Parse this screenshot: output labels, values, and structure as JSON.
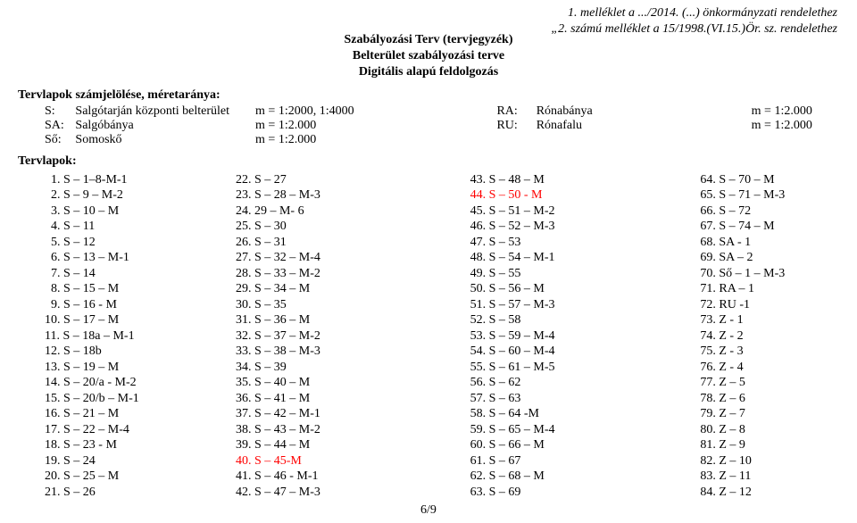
{
  "annex": {
    "line1": "1. melléklet a .../2014. (...) önkormányzati rendelethez",
    "line2": "„2. számú melléklet a 15/1998.(VI.15.)Ör. sz. rendelethez"
  },
  "title": {
    "line1": "Szabályozási Terv (tervjegyzék)",
    "line2": "Belterület szabályozási terve",
    "line3": "Digitális alapú feldolgozás"
  },
  "scales_heading": "Tervlapok számjelölése, méretaránya:",
  "scales": [
    {
      "code": "S:",
      "name": "Salgótarján központi belterület",
      "m": "m = 1:2000, 1:4000",
      "code2": "RA:",
      "name2": "Rónabánya",
      "m2": "m = 1:2.000"
    },
    {
      "code": "SA:",
      "name": "Salgóbánya",
      "m": "m = 1:2.000",
      "code2": "RU:",
      "name2": "Rónafalu",
      "m2": "m = 1:2.000"
    },
    {
      "code": "Ső:",
      "name": "Somoskő",
      "m": "m = 1:2.000",
      "code2": "",
      "name2": "",
      "m2": ""
    }
  ],
  "list_heading": "Tervlapok:",
  "columns": [
    [
      {
        "n": "1.",
        "t": "S – 1–8-M-1"
      },
      {
        "n": "2.",
        "t": "S – 9 – M-2"
      },
      {
        "n": "3.",
        "t": "S – 10 – M"
      },
      {
        "n": "4.",
        "t": "S – 11"
      },
      {
        "n": "5.",
        "t": "S – 12"
      },
      {
        "n": "6.",
        "t": "S – 13 – M-1"
      },
      {
        "n": "7.",
        "t": "S – 14"
      },
      {
        "n": "8.",
        "t": "S – 15 – M"
      },
      {
        "n": "9.",
        "t": "S – 16 - M"
      },
      {
        "n": "10.",
        "t": "S – 17 – M"
      },
      {
        "n": "11.",
        "t": "S – 18a – M-1"
      },
      {
        "n": "12.",
        "t": "S – 18b"
      },
      {
        "n": "13.",
        "t": "S – 19 – M"
      },
      {
        "n": "14.",
        "t": "S – 20/a - M-2"
      },
      {
        "n": "15.",
        "t": "S – 20/b – M-1"
      },
      {
        "n": "16.",
        "t": "S – 21 – M"
      },
      {
        "n": "17.",
        "t": "S – 22 – M-4"
      },
      {
        "n": "18.",
        "t": "S – 23 - M"
      },
      {
        "n": "19.",
        "t": "S – 24"
      },
      {
        "n": "20.",
        "t": "S – 25 – M"
      },
      {
        "n": "21.",
        "t": "S – 26"
      }
    ],
    [
      {
        "n": "22.",
        "t": "S – 27"
      },
      {
        "n": "23.",
        "t": "S – 28 – M-3"
      },
      {
        "n": "24.",
        "t": "29 – M- 6"
      },
      {
        "n": "25.",
        "t": "S – 30"
      },
      {
        "n": "26.",
        "t": "S – 31"
      },
      {
        "n": "27.",
        "t": "S – 32 – M-4"
      },
      {
        "n": "28.",
        "t": "S – 33 – M-2"
      },
      {
        "n": "29.",
        "t": "S – 34 – M"
      },
      {
        "n": "30.",
        "t": "S – 35"
      },
      {
        "n": "31.",
        "t": "S – 36 – M"
      },
      {
        "n": "32.",
        "t": "S – 37 – M-2"
      },
      {
        "n": "33.",
        "t": "S – 38 – M-3"
      },
      {
        "n": "34.",
        "t": "S – 39"
      },
      {
        "n": "35.",
        "t": "S – 40 – M"
      },
      {
        "n": "36.",
        "t": "S – 41 – M"
      },
      {
        "n": "37.",
        "t": "S – 42 – M-1"
      },
      {
        "n": "38.",
        "t": "S – 43 – M-2"
      },
      {
        "n": "39.",
        "t": "S – 44 – M"
      },
      {
        "n": "40.",
        "t": "S – 45-M",
        "red": true
      },
      {
        "n": "41.",
        "t": "S – 46 - M-1"
      },
      {
        "n": "42.",
        "t": "S – 47 – M-3"
      }
    ],
    [
      {
        "n": "43.",
        "t": "S – 48 – M"
      },
      {
        "n": "44.",
        "t": "S – 50 - M",
        "red": true
      },
      {
        "n": "45.",
        "t": "S – 51 – M-2"
      },
      {
        "n": "46.",
        "t": "S – 52 – M-3"
      },
      {
        "n": "47.",
        "t": "S – 53"
      },
      {
        "n": "48.",
        "t": "S – 54 – M-1"
      },
      {
        "n": "49.",
        "t": "S – 55"
      },
      {
        "n": "50.",
        "t": "S – 56 – M"
      },
      {
        "n": "51.",
        "t": "S – 57 – M-3"
      },
      {
        "n": "52.",
        "t": "S – 58"
      },
      {
        "n": "53.",
        "t": "S – 59 – M-4"
      },
      {
        "n": "54.",
        "t": "S – 60 – M-4"
      },
      {
        "n": "55.",
        "t": "S – 61 – M-5"
      },
      {
        "n": "56.",
        "t": "S – 62"
      },
      {
        "n": "57.",
        "t": "S – 63"
      },
      {
        "n": "58.",
        "t": "S – 64 -M"
      },
      {
        "n": "59.",
        "t": "S – 65 – M-4"
      },
      {
        "n": "60.",
        "t": "S – 66 – M"
      },
      {
        "n": "61.",
        "t": "S – 67"
      },
      {
        "n": "62.",
        "t": "S – 68 – M"
      },
      {
        "n": "63.",
        "t": "S – 69"
      }
    ],
    [
      {
        "n": "64.",
        "t": "S – 70 – M"
      },
      {
        "n": "65.",
        "t": "S – 71 – M-3"
      },
      {
        "n": "66.",
        "t": "S – 72"
      },
      {
        "n": "67.",
        "t": "S – 74 – M"
      },
      {
        "n": "68.",
        "t": "SA - 1"
      },
      {
        "n": "69.",
        "t": "SA – 2"
      },
      {
        "n": "70.",
        "t": "Ső – 1 – M-3"
      },
      {
        "n": "71.",
        "t": "RA – 1"
      },
      {
        "n": "72.",
        "t": "RU -1"
      },
      {
        "n": "73.",
        "t": "Z - 1"
      },
      {
        "n": "74.",
        "t": "Z - 2"
      },
      {
        "n": "75.",
        "t": "Z - 3"
      },
      {
        "n": "76.",
        "t": "Z - 4"
      },
      {
        "n": "77.",
        "t": "Z – 5"
      },
      {
        "n": "78.",
        "t": "Z – 6"
      },
      {
        "n": "79.",
        "t": "Z – 7"
      },
      {
        "n": "80.",
        "t": "Z – 8"
      },
      {
        "n": "81.",
        "t": "Z – 9"
      },
      {
        "n": "82.",
        "t": "Z – 10"
      },
      {
        "n": "83.",
        "t": "Z – 11"
      },
      {
        "n": "84.",
        "t": "Z – 12"
      }
    ]
  ],
  "footer": "6/9"
}
